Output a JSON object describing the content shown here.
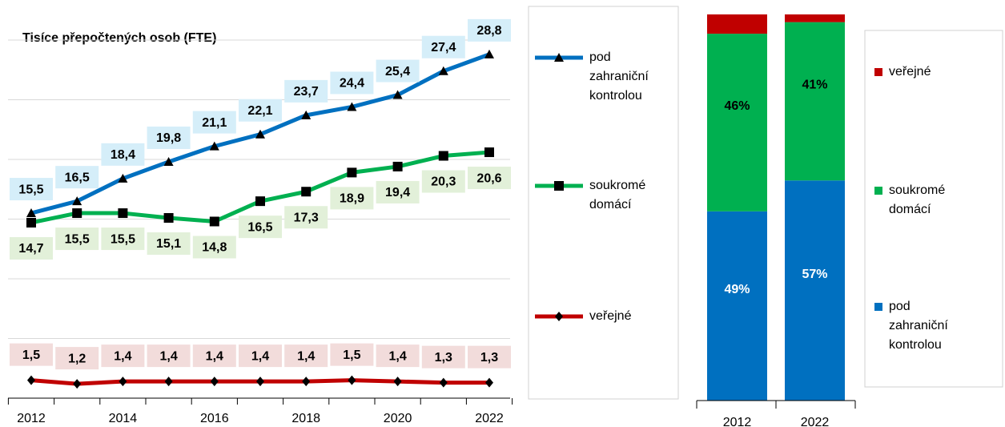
{
  "chart_data": [
    {
      "type": "line",
      "title": "Tisíce přepočtených osob (FTE)",
      "categories": [
        "2012",
        null,
        "2014",
        null,
        "2016",
        null,
        "2018",
        null,
        "2020",
        null,
        "2022"
      ],
      "ylim": [
        0,
        30
      ],
      "yticks": [
        0,
        5,
        10,
        15,
        20,
        25,
        30
      ],
      "grid": true,
      "series": [
        {
          "name": "pod zahraniční kontrolou",
          "color": "#0070c0",
          "marker": "triangle",
          "label_bg": "#d5eef9",
          "values": [
            15.5,
            16.5,
            18.4,
            19.8,
            21.1,
            22.1,
            23.7,
            24.4,
            25.4,
            27.4,
            28.8
          ],
          "value_labels": [
            "15,5",
            "16,5",
            "18,4",
            "19,8",
            "21,1",
            "22,1",
            "23,7",
            "24,4",
            "25,4",
            "27,4",
            "28,8"
          ]
        },
        {
          "name": "soukromé domácí",
          "color": "#00b050",
          "marker": "square",
          "label_bg": "#e2f0d9",
          "values": [
            14.7,
            15.5,
            15.5,
            15.1,
            14.8,
            16.5,
            17.3,
            18.9,
            19.4,
            20.3,
            20.6
          ],
          "value_labels": [
            "14,7",
            "15,5",
            "15,5",
            "15,1",
            "14,8",
            "16,5",
            "17,3",
            "18,9",
            "19,4",
            "20,3",
            "20,6"
          ]
        },
        {
          "name": "veřejné",
          "color": "#c00000",
          "marker": "diamond",
          "label_bg": "#f2dcdb",
          "values": [
            1.5,
            1.2,
            1.4,
            1.4,
            1.4,
            1.4,
            1.4,
            1.5,
            1.4,
            1.3,
            1.3
          ],
          "value_labels": [
            "1,5",
            "1,2",
            "1,4",
            "1,4",
            "1,4",
            "1,4",
            "1,4",
            "1,5",
            "1,4",
            "1,3",
            "1,3"
          ]
        }
      ]
    },
    {
      "type": "stacked_bar",
      "categories": [
        "2012",
        "2022"
      ],
      "ylim": [
        0,
        100
      ],
      "series": [
        {
          "name": "pod zahraniční kontrolou",
          "color": "#0070c0",
          "label_color": "#ffffff",
          "values": [
            49,
            57
          ],
          "value_labels": [
            "49%",
            "57%"
          ]
        },
        {
          "name": "soukromé domácí",
          "color": "#00b050",
          "label_color": "#000000",
          "values": [
            46,
            41
          ],
          "value_labels": [
            "46%",
            "41%"
          ]
        },
        {
          "name": "veřejné",
          "color": "#c00000",
          "values": [
            5,
            2
          ]
        }
      ]
    }
  ]
}
